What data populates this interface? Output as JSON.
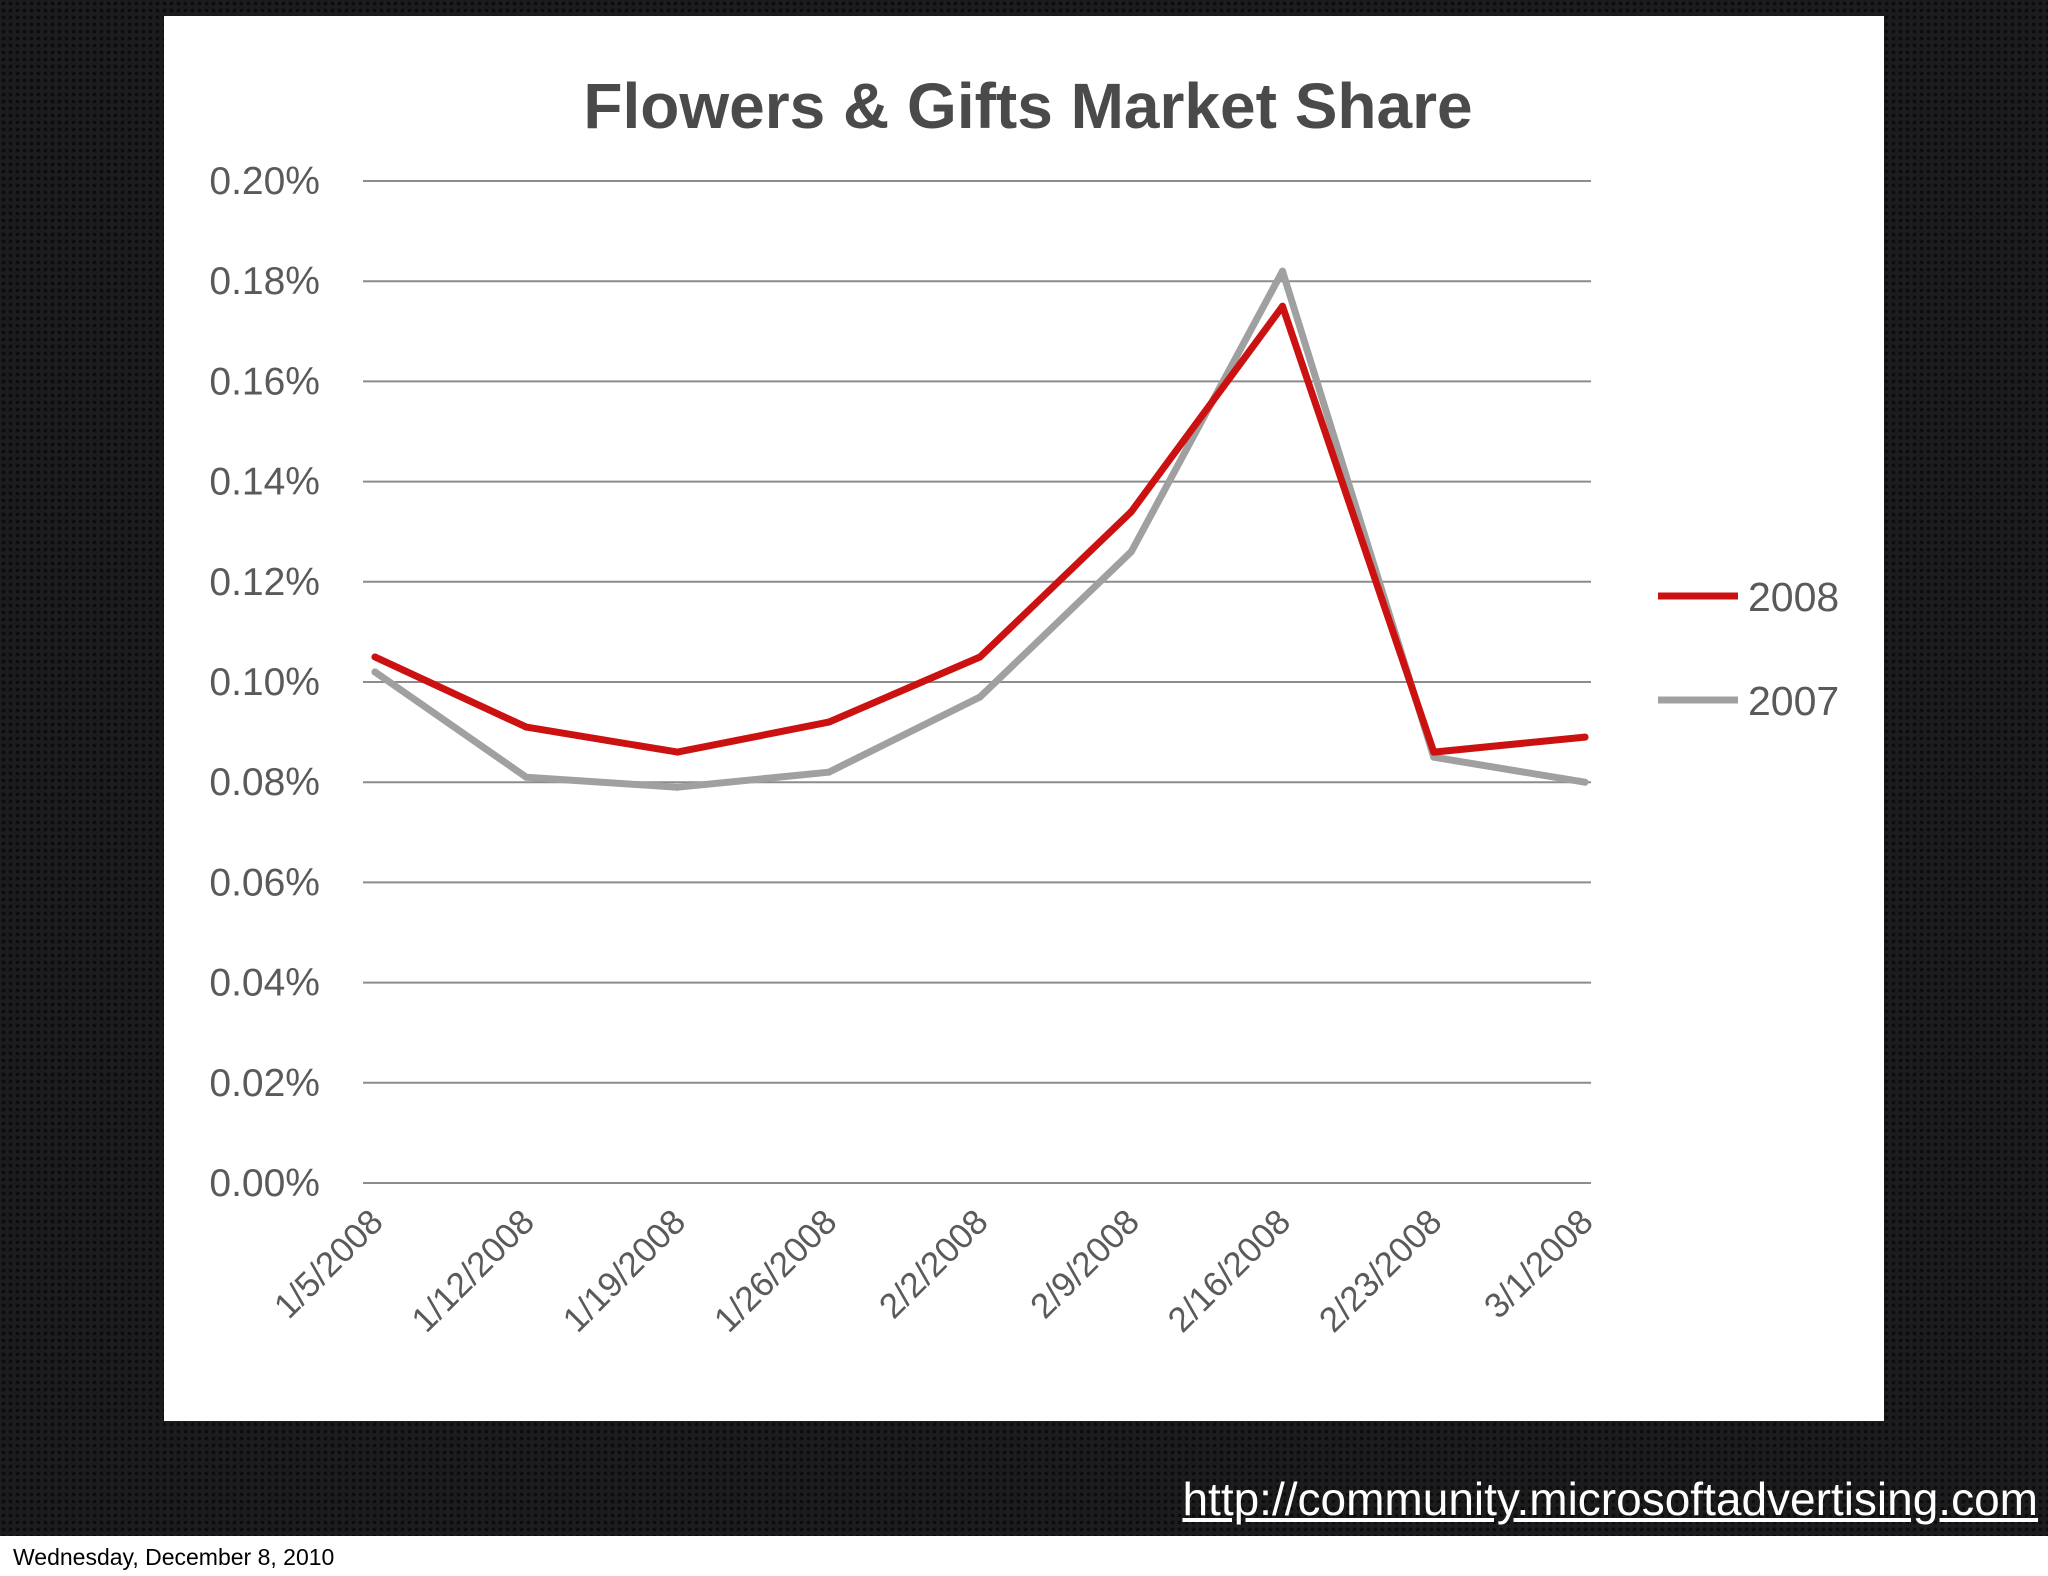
{
  "slide": {
    "source_url": "http://community.microsoftadvertising.com",
    "footer_date": "Wednesday, December 8, 2010"
  },
  "chart_data": {
    "type": "line",
    "title": "Flowers & Gifts Market Share",
    "xlabel": "",
    "ylabel": "",
    "categories": [
      "1/5/2008",
      "1/12/2008",
      "1/19/2008",
      "1/26/2008",
      "2/2/2008",
      "2/9/2008",
      "2/16/2008",
      "2/23/2008",
      "3/1/2008"
    ],
    "y_ticks": [
      "0.00%",
      "0.02%",
      "0.04%",
      "0.06%",
      "0.08%",
      "0.10%",
      "0.12%",
      "0.14%",
      "0.16%",
      "0.18%",
      "0.20%"
    ],
    "ylim": [
      0,
      0.2
    ],
    "y_unit": "%",
    "grid": "horizontal",
    "legend_position": "right",
    "series": [
      {
        "name": "2008",
        "color": "#cc1111",
        "values": [
          0.105,
          0.091,
          0.086,
          0.092,
          0.105,
          0.134,
          0.175,
          0.086,
          0.089
        ]
      },
      {
        "name": "2007",
        "color": "#a0a0a0",
        "values": [
          0.102,
          0.081,
          0.079,
          0.082,
          0.097,
          0.126,
          0.182,
          0.085,
          0.08
        ]
      }
    ]
  }
}
